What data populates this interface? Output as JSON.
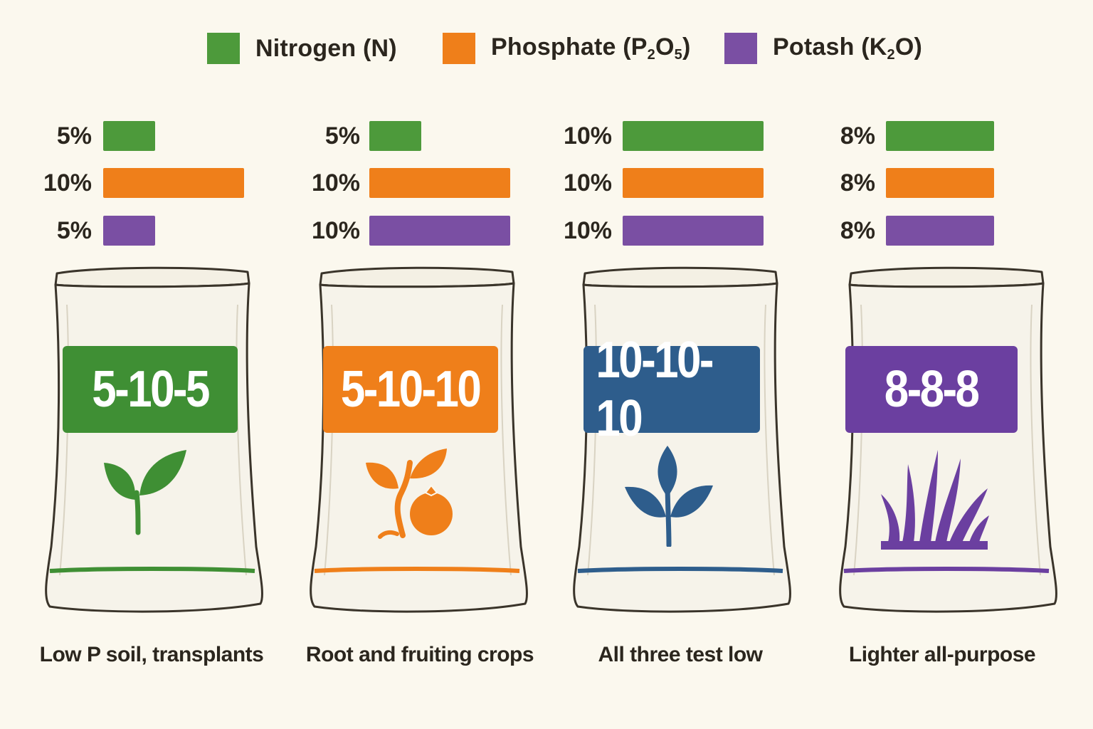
{
  "legend": [
    {
      "name": "Nitrogen (N)",
      "label_main": "Nitrogen (N)",
      "color": "#4d9a3b"
    },
    {
      "name": "Phosphate (P2O5)",
      "label_main": "Phosphate (P",
      "sub1": "2",
      "mid": "O",
      "sub2": "5",
      "end": ")",
      "color": "#ef7f1a"
    },
    {
      "name": "Potash (K2O)",
      "label_main": "Potash (K",
      "sub1": "2",
      "mid": "O)",
      "color": "#7a4fa3"
    }
  ],
  "chart_data": {
    "type": "bar",
    "orientation": "horizontal",
    "title": "",
    "series_names": [
      "Nitrogen (N)",
      "Phosphate (P2O5)",
      "Potash (K2O)"
    ],
    "series_colors": [
      "#4d9a3b",
      "#ef7f1a",
      "#7a4fa3"
    ],
    "groups": [
      {
        "ratio": "5-10-5",
        "use": "Low P soil, transplants",
        "values": [
          5,
          10,
          5
        ],
        "value_labels": [
          "5%",
          "10%",
          "5%"
        ],
        "label_color": "#3f8f34",
        "icon": "seedling-icon"
      },
      {
        "ratio": "5-10-10",
        "use": "Root and fruiting crops",
        "values": [
          5,
          10,
          10
        ],
        "value_labels": [
          "5%",
          "10%",
          "10%"
        ],
        "label_color": "#ef7f1a",
        "icon": "fruiting-plant-icon"
      },
      {
        "ratio": "10-10-10",
        "use": "All three test low",
        "values": [
          10,
          10,
          10
        ],
        "value_labels": [
          "10%",
          "10%",
          "10%"
        ],
        "label_color": "#2e5d8c",
        "icon": "plant-icon"
      },
      {
        "ratio": "8-8-8",
        "use": "Lighter all-purpose",
        "values": [
          8,
          8,
          8
        ],
        "value_labels": [
          "8%",
          "8%",
          "8%"
        ],
        "label_color": "#6b3fa0",
        "icon": "grass-icon"
      }
    ],
    "value_unit": "%",
    "xlim": [
      0,
      14
    ],
    "legend_position": "top",
    "grid": false
  }
}
